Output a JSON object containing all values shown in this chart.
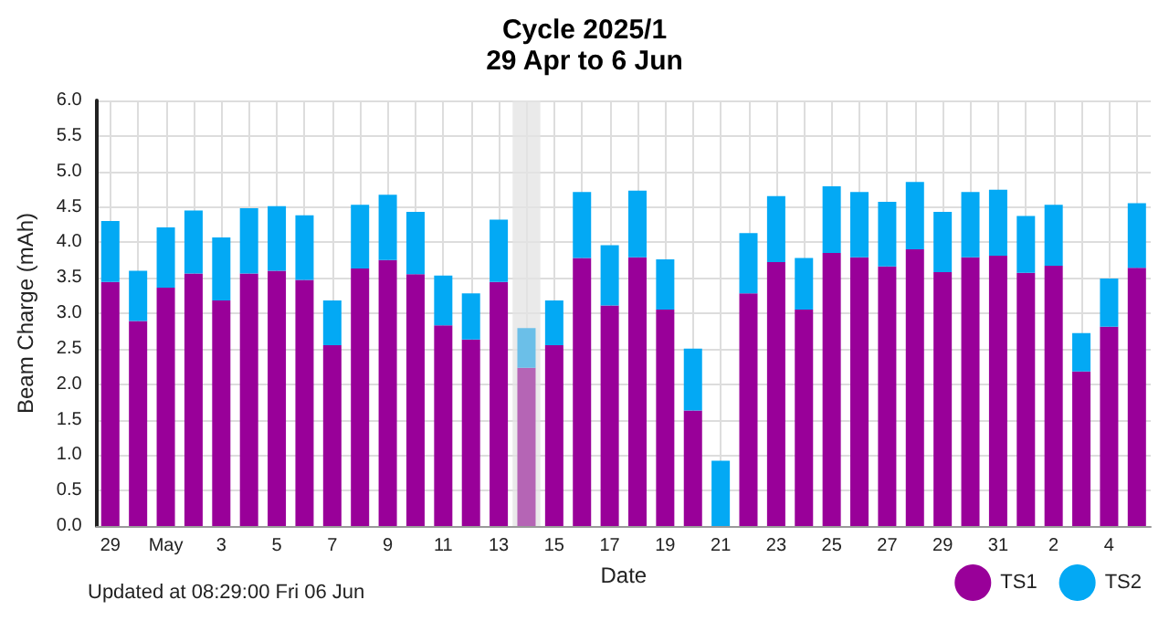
{
  "chart_data": {
    "type": "bar",
    "title": "Cycle 2025/1",
    "subtitle": "29 Apr to 6 Jun",
    "xlabel": "Date",
    "ylabel": "Beam Charge (mAh)",
    "annotations": [
      "Updated at 08:29:00 Fri 06 Jun"
    ],
    "x": [
      "--04-29",
      "--04-30",
      "--05-01",
      "--05-02",
      "--05-03",
      "--05-04",
      "--05-05",
      "--05-06",
      "--05-07",
      "--05-08",
      "--05-09",
      "--05-10",
      "--05-11",
      "--05-12",
      "--05-13",
      "--05-14",
      "--05-15",
      "--05-16",
      "--05-17",
      "--05-18",
      "--05-19",
      "--05-20",
      "--05-21",
      "--05-22",
      "--05-23",
      "--05-24",
      "--05-25",
      "--05-26",
      "--05-27",
      "--05-28",
      "--05-29",
      "--05-30",
      "--05-31",
      "--06-01",
      "--06-02",
      "--06-03",
      "--06-04",
      "--06-05"
    ],
    "stacked": true,
    "series": [
      {
        "name": "TS1",
        "color": "#990099",
        "colors": [
          "#990099",
          "#990099",
          "#990099",
          "#990099",
          "#990099",
          "#990099",
          "#990099",
          "#990099",
          "#990099",
          "#990099",
          "#990099",
          "#990099",
          "#990099",
          "#990099",
          "#990099",
          "#b565b5",
          "#990099",
          "#990099",
          "#990099",
          "#990099",
          "#990099",
          "#990099",
          "#990099",
          "#990099",
          "#990099",
          "#990099",
          "#990099",
          "#990099",
          "#990099",
          "#990099",
          "#990099",
          "#990099",
          "#990099",
          "#990099",
          "#990099",
          "#990099",
          "#990099",
          "#990099"
        ],
        "values": [
          3.44,
          2.89,
          3.36,
          3.56,
          3.18,
          3.56,
          3.6,
          3.47,
          2.55,
          3.63,
          3.75,
          3.55,
          2.83,
          2.63,
          3.44,
          2.23,
          2.55,
          3.78,
          3.11,
          3.79,
          3.05,
          1.63,
          0,
          3.28,
          3.72,
          3.05,
          3.85,
          3.79,
          3.66,
          3.9,
          3.58,
          3.79,
          3.81,
          3.57,
          3.67,
          2.18,
          2.81,
          3.64
        ]
      },
      {
        "name": "TS2",
        "color": "#03a9f4",
        "colors": [
          "#03a9f4",
          "#03a9f4",
          "#03a9f4",
          "#03a9f4",
          "#03a9f4",
          "#03a9f4",
          "#03a9f4",
          "#03a9f4",
          "#03a9f4",
          "#03a9f4",
          "#03a9f4",
          "#03a9f4",
          "#03a9f4",
          "#03a9f4",
          "#03a9f4",
          "#6bbfe8",
          "#03a9f4",
          "#03a9f4",
          "#03a9f4",
          "#03a9f4",
          "#03a9f4",
          "#03a9f4",
          "#03a9f4",
          "#03a9f4",
          "#03a9f4",
          "#03a9f4",
          "#03a9f4",
          "#03a9f4",
          "#03a9f4",
          "#03a9f4",
          "#03a9f4",
          "#03a9f4",
          "#03a9f4",
          "#03a9f4",
          "#03a9f4",
          "#03a9f4",
          "#03a9f4",
          "#03a9f4"
        ],
        "values": [
          0.86,
          0.71,
          0.85,
          0.89,
          0.89,
          0.92,
          0.91,
          0.91,
          0.63,
          0.9,
          0.92,
          0.88,
          0.7,
          0.65,
          0.88,
          0.56,
          0.63,
          0.93,
          0.85,
          0.94,
          0.71,
          0.87,
          0.92,
          0.85,
          0.93,
          0.73,
          0.94,
          0.92,
          0.91,
          0.95,
          0.85,
          0.92,
          0.93,
          0.8,
          0.86,
          0.54,
          0.68,
          0.91
        ]
      }
    ],
    "bands": [
      {
        "axis": "x",
        "from": "--05-13T12:00",
        "to": "--05-14T12:00",
        "color": "#e3e3e3"
      }
    ],
    "xlim": [
      "--04-28T12:00",
      "--06-05T12:00"
    ],
    "xticks": [
      {
        "value": "--04-29",
        "label": "29"
      },
      {
        "value": "--04-30",
        "label": null
      },
      {
        "value": "--05-01",
        "label": "May"
      },
      {
        "value": "--05-02",
        "label": null
      },
      {
        "value": "--05-03",
        "label": "3"
      },
      {
        "value": "--05-04",
        "label": null
      },
      {
        "value": "--05-05",
        "label": "5"
      },
      {
        "value": "--05-06",
        "label": null
      },
      {
        "value": "--05-07",
        "label": "7"
      },
      {
        "value": "--05-08",
        "label": null
      },
      {
        "value": "--05-09",
        "label": "9"
      },
      {
        "value": "--05-10",
        "label": null
      },
      {
        "value": "--05-11",
        "label": "11"
      },
      {
        "value": "--05-12",
        "label": null
      },
      {
        "value": "--05-13",
        "label": "13"
      },
      {
        "value": "--05-14",
        "label": null
      },
      {
        "value": "--05-15",
        "label": "15"
      },
      {
        "value": "--05-16",
        "label": null
      },
      {
        "value": "--05-17",
        "label": "17"
      },
      {
        "value": "--05-18",
        "label": null
      },
      {
        "value": "--05-19",
        "label": "19"
      },
      {
        "value": "--05-20",
        "label": null
      },
      {
        "value": "--05-21",
        "label": "21"
      },
      {
        "value": "--05-22",
        "label": null
      },
      {
        "value": "--05-23",
        "label": "23"
      },
      {
        "value": "--05-24",
        "label": null
      },
      {
        "value": "--05-25",
        "label": "25"
      },
      {
        "value": "--05-26",
        "label": null
      },
      {
        "value": "--05-27",
        "label": "27"
      },
      {
        "value": "--05-28",
        "label": null
      },
      {
        "value": "--05-29",
        "label": "29"
      },
      {
        "value": "--05-30",
        "label": null
      },
      {
        "value": "--05-31",
        "label": "31"
      },
      {
        "value": "--06-01",
        "label": null
      },
      {
        "value": "--06-02",
        "label": "2"
      },
      {
        "value": "--06-03",
        "label": null
      },
      {
        "value": "--06-04",
        "label": "4"
      },
      {
        "value": "--06-05",
        "label": null
      }
    ],
    "ylim": [
      0,
      6
    ],
    "yticks": [
      {
        "value": 0,
        "label": "0.0"
      },
      0.5,
      {
        "value": 1,
        "label": "1.0"
      },
      1.5,
      {
        "value": 2,
        "label": "2.0"
      },
      2.5,
      {
        "value": 3,
        "label": "3.0"
      },
      3.5,
      {
        "value": 4,
        "label": "4.0"
      },
      4.5,
      {
        "value": 5,
        "label": "5.0"
      },
      5.5,
      {
        "value": 6,
        "label": "6.0"
      }
    ],
    "grid": true,
    "legend": "bottom right"
  }
}
